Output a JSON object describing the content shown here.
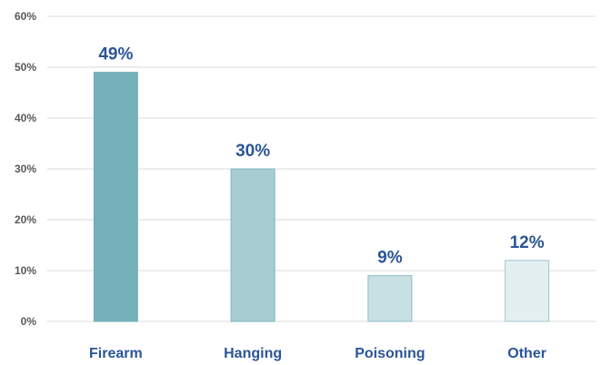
{
  "chart_data": {
    "type": "bar",
    "categories": [
      "Firearm",
      "Hanging",
      "Poisoning",
      "Other"
    ],
    "values": [
      49,
      30,
      9,
      12
    ],
    "data_labels": [
      "49%",
      "30%",
      "9%",
      "12%"
    ],
    "ylim": [
      0,
      60
    ],
    "yticks": [
      0,
      10,
      20,
      30,
      40,
      50,
      60
    ],
    "ytick_labels": [
      "0%",
      "10%",
      "20%",
      "30%",
      "40%",
      "50%",
      "60%"
    ],
    "grid": true,
    "legend": "none",
    "colors": {
      "bars": [
        "#75b0ba",
        "#a7cdd3",
        "#c8dfe3",
        "#e4eff1"
      ],
      "bar_edges": [
        "#75b0ba",
        "#7fb6bf",
        "#8fbfc7",
        "#9fc8cf"
      ],
      "label_text": "#2b5597"
    }
  }
}
